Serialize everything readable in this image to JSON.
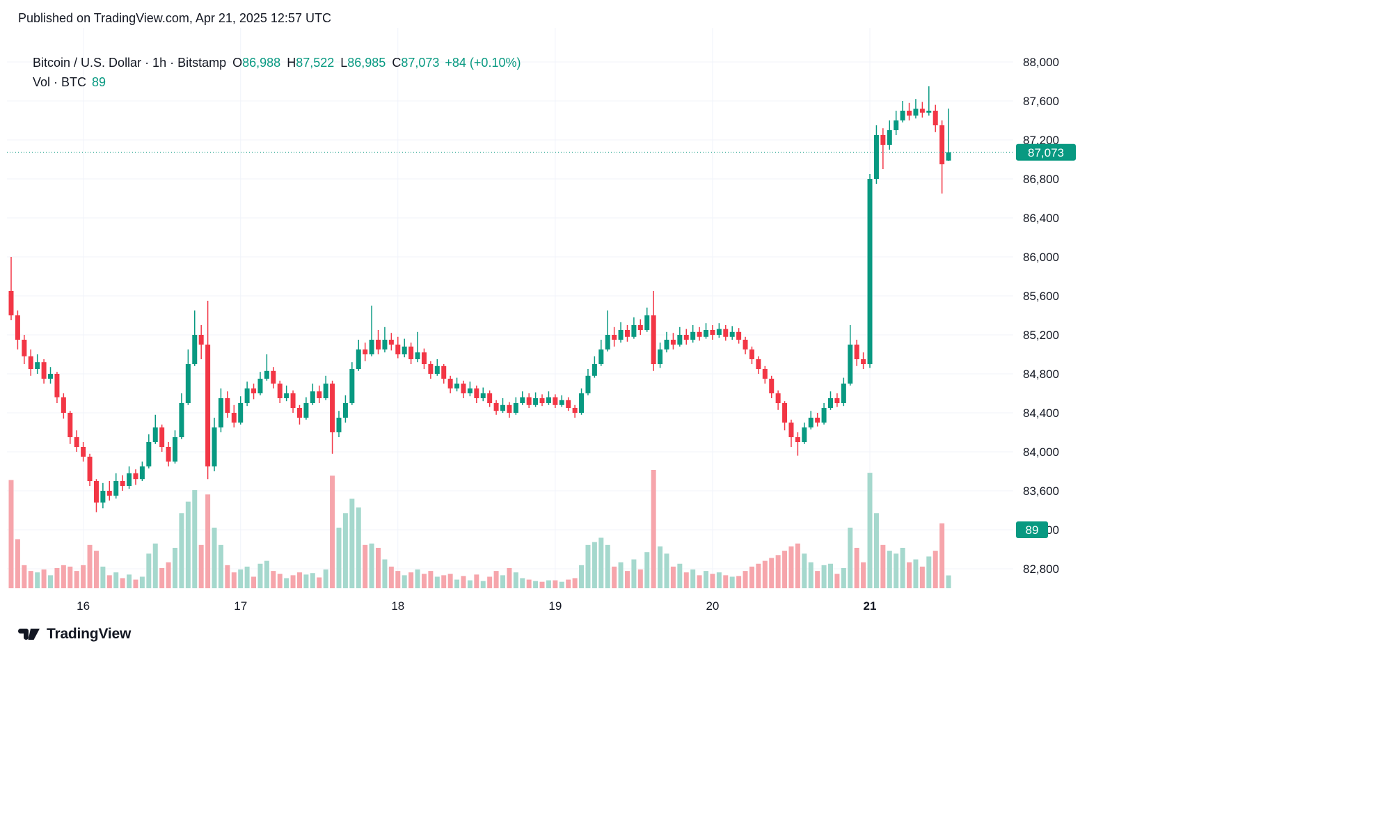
{
  "header": {
    "published": "Published on TradingView.com, Apr 21, 2025 12:57 UTC"
  },
  "legend": {
    "title": "Bitcoin / U.S. Dollar · 1h · Bitstamp",
    "ohlc": [
      {
        "k": "O",
        "v": "86,988"
      },
      {
        "k": "H",
        "v": "87,522"
      },
      {
        "k": "L",
        "v": "86,985"
      },
      {
        "k": "C",
        "v": "87,073"
      }
    ],
    "change": "+84 (+0.10%)",
    "vol_label": "Vol · BTC",
    "vol_value": "89"
  },
  "footer": {
    "brand": "TradingView"
  },
  "colors": {
    "up": "#089981",
    "down": "#F23645",
    "vol_up": "#a5d8cd",
    "vol_down": "#f6a5ab",
    "text": "#131722",
    "grid": "#f0f3fa",
    "badge_text": "#ffffff"
  },
  "chart_data": {
    "type": "candlestick+volume",
    "title": "Bitcoin / U.S. Dollar · 1h · Bitstamp",
    "interval": "1h",
    "exchange": "Bitstamp",
    "last": {
      "open": 86988,
      "high": 87522,
      "low": 86985,
      "close": 87073,
      "change": 84,
      "change_pct": 0.1,
      "volume_btc": 89
    },
    "last_price": 87073,
    "last_price_label": "87,073",
    "last_volume_label": "89",
    "ylim": [
      82550,
      88150
    ],
    "grid": "faint",
    "y_ticks": [
      {
        "price": 88000,
        "label": "88,000"
      },
      {
        "price": 87600,
        "label": "87,600"
      },
      {
        "price": 87200,
        "label": "87,200"
      },
      {
        "price": 86800,
        "label": "86,800"
      },
      {
        "price": 86400,
        "label": "86,400"
      },
      {
        "price": 86000,
        "label": "86,000"
      },
      {
        "price": 85600,
        "label": "85,600"
      },
      {
        "price": 85200,
        "label": "85,200"
      },
      {
        "price": 84800,
        "label": "84,800"
      },
      {
        "price": 84400,
        "label": "84,400"
      },
      {
        "price": 84000,
        "label": "84,000"
      },
      {
        "price": 83600,
        "label": "83,600"
      },
      {
        "price": 83200,
        "label": "83,200"
      },
      {
        "price": 82800,
        "label": "82,800"
      }
    ],
    "x_ticks": [
      {
        "i": 11,
        "label": "16",
        "bold": false
      },
      {
        "i": 35,
        "label": "17",
        "bold": false
      },
      {
        "i": 59,
        "label": "18",
        "bold": false
      },
      {
        "i": 83,
        "label": "19",
        "bold": false
      },
      {
        "i": 107,
        "label": "20",
        "bold": false
      },
      {
        "i": 131,
        "label": "21",
        "bold": true
      }
    ],
    "candles": {
      "columns": [
        "open",
        "high",
        "low",
        "close",
        "volume"
      ],
      "rows": [
        [
          85650,
          86000,
          85350,
          85400,
          750
        ],
        [
          85400,
          85450,
          85050,
          85150,
          340
        ],
        [
          85150,
          85200,
          84900,
          84980,
          160
        ],
        [
          84980,
          85050,
          84780,
          84850,
          120
        ],
        [
          84850,
          85000,
          84800,
          84920,
          110
        ],
        [
          84920,
          84950,
          84700,
          84750,
          130
        ],
        [
          84750,
          84870,
          84700,
          84800,
          90
        ],
        [
          84800,
          84820,
          84500,
          84560,
          140
        ],
        [
          84560,
          84600,
          84340,
          84400,
          160
        ],
        [
          84400,
          84420,
          84080,
          84150,
          150
        ],
        [
          84150,
          84220,
          84000,
          84050,
          120
        ],
        [
          84050,
          84100,
          83900,
          83950,
          160
        ],
        [
          83950,
          83980,
          83650,
          83700,
          300
        ],
        [
          83700,
          83720,
          83380,
          83480,
          260
        ],
        [
          83480,
          83680,
          83420,
          83600,
          150
        ],
        [
          83600,
          83700,
          83500,
          83550,
          90
        ],
        [
          83550,
          83780,
          83520,
          83700,
          110
        ],
        [
          83700,
          83760,
          83600,
          83650,
          70
        ],
        [
          83650,
          83850,
          83620,
          83780,
          95
        ],
        [
          83780,
          83820,
          83660,
          83720,
          60
        ],
        [
          83720,
          83900,
          83700,
          83850,
          80
        ],
        [
          83850,
          84180,
          83830,
          84100,
          240
        ],
        [
          84100,
          84380,
          84080,
          84250,
          310
        ],
        [
          84250,
          84280,
          84000,
          84050,
          140
        ],
        [
          84050,
          84100,
          83850,
          83900,
          180
        ],
        [
          83900,
          84220,
          83880,
          84150,
          280
        ],
        [
          84150,
          84600,
          84130,
          84500,
          520
        ],
        [
          84500,
          85050,
          84480,
          84900,
          600
        ],
        [
          84900,
          85450,
          84880,
          85200,
          680
        ],
        [
          85200,
          85300,
          84950,
          85100,
          300
        ],
        [
          85100,
          85550,
          83720,
          83850,
          650
        ],
        [
          83850,
          84350,
          83800,
          84250,
          420
        ],
        [
          84250,
          84650,
          84200,
          84550,
          300
        ],
        [
          84550,
          84620,
          84350,
          84400,
          160
        ],
        [
          84400,
          84480,
          84250,
          84300,
          110
        ],
        [
          84300,
          84570,
          84280,
          84500,
          130
        ],
        [
          84500,
          84720,
          84470,
          84650,
          150
        ],
        [
          84650,
          84700,
          84540,
          84600,
          80
        ],
        [
          84600,
          84820,
          84580,
          84750,
          170
        ],
        [
          84750,
          85000,
          84730,
          84830,
          190
        ],
        [
          84830,
          84870,
          84650,
          84700,
          120
        ],
        [
          84700,
          84730,
          84500,
          84550,
          100
        ],
        [
          84550,
          84680,
          84520,
          84600,
          70
        ],
        [
          84600,
          84630,
          84400,
          84450,
          90
        ],
        [
          84450,
          84480,
          84280,
          84350,
          110
        ],
        [
          84350,
          84560,
          84330,
          84500,
          95
        ],
        [
          84500,
          84700,
          84480,
          84620,
          105
        ],
        [
          84620,
          84680,
          84500,
          84550,
          75
        ],
        [
          84550,
          84780,
          84530,
          84700,
          130
        ],
        [
          84700,
          84730,
          83980,
          84200,
          780
        ],
        [
          84200,
          84420,
          84150,
          84350,
          420
        ],
        [
          84350,
          84580,
          84300,
          84500,
          520
        ],
        [
          84500,
          84920,
          84480,
          84850,
          620
        ],
        [
          84850,
          85150,
          84830,
          85050,
          560
        ],
        [
          85050,
          85120,
          84930,
          85000,
          300
        ],
        [
          85000,
          85500,
          84980,
          85150,
          310
        ],
        [
          85150,
          85250,
          85000,
          85050,
          280
        ],
        [
          85050,
          85280,
          85020,
          85150,
          200
        ],
        [
          85150,
          85220,
          85040,
          85100,
          150
        ],
        [
          85100,
          85180,
          84960,
          85000,
          120
        ],
        [
          85000,
          85160,
          84970,
          85080,
          90
        ],
        [
          85080,
          85120,
          84900,
          84950,
          110
        ],
        [
          84950,
          85230,
          84920,
          85020,
          130
        ],
        [
          85020,
          85060,
          84850,
          84900,
          100
        ],
        [
          84900,
          84930,
          84750,
          84800,
          120
        ],
        [
          84800,
          84950,
          84780,
          84880,
          80
        ],
        [
          84880,
          84900,
          84700,
          84750,
          90
        ],
        [
          84750,
          84780,
          84600,
          84650,
          100
        ],
        [
          84650,
          84760,
          84620,
          84700,
          60
        ],
        [
          84700,
          84730,
          84550,
          84600,
          85
        ],
        [
          84600,
          84720,
          84570,
          84650,
          55
        ],
        [
          84650,
          84680,
          84500,
          84550,
          95
        ],
        [
          84550,
          84660,
          84520,
          84600,
          50
        ],
        [
          84600,
          84630,
          84460,
          84500,
          80
        ],
        [
          84500,
          84530,
          84380,
          84420,
          120
        ],
        [
          84420,
          84550,
          84400,
          84480,
          90
        ],
        [
          84480,
          84510,
          84350,
          84400,
          140
        ],
        [
          84400,
          84560,
          84380,
          84500,
          110
        ],
        [
          84500,
          84620,
          84480,
          84560,
          70
        ],
        [
          84560,
          84600,
          84450,
          84480,
          60
        ],
        [
          84480,
          84610,
          84460,
          84550,
          50
        ],
        [
          84550,
          84590,
          84470,
          84500,
          45
        ],
        [
          84500,
          84620,
          84480,
          84560,
          55
        ],
        [
          84560,
          84590,
          84450,
          84480,
          55
        ],
        [
          84480,
          84580,
          84460,
          84530,
          45
        ],
        [
          84530,
          84560,
          84420,
          84450,
          60
        ],
        [
          84450,
          84480,
          84350,
          84400,
          70
        ],
        [
          84400,
          84650,
          84380,
          84600,
          160
        ],
        [
          84600,
          84850,
          84580,
          84780,
          300
        ],
        [
          84780,
          84980,
          84760,
          84900,
          320
        ],
        [
          84900,
          85150,
          84880,
          85050,
          350
        ],
        [
          85050,
          85450,
          85030,
          85200,
          300
        ],
        [
          85200,
          85280,
          85080,
          85150,
          150
        ],
        [
          85150,
          85330,
          85120,
          85250,
          180
        ],
        [
          85250,
          85300,
          85130,
          85180,
          120
        ],
        [
          85180,
          85380,
          85160,
          85300,
          200
        ],
        [
          85300,
          85360,
          85200,
          85250,
          130
        ],
        [
          85250,
          85480,
          85230,
          85400,
          250
        ],
        [
          85400,
          85650,
          84830,
          84900,
          820
        ],
        [
          84900,
          85120,
          84860,
          85050,
          290
        ],
        [
          85050,
          85230,
          85020,
          85150,
          240
        ],
        [
          85150,
          85220,
          85050,
          85100,
          150
        ],
        [
          85100,
          85280,
          85080,
          85200,
          170
        ],
        [
          85200,
          85260,
          85100,
          85150,
          110
        ],
        [
          85150,
          85300,
          85120,
          85230,
          130
        ],
        [
          85230,
          85280,
          85140,
          85180,
          90
        ],
        [
          85180,
          85320,
          85160,
          85250,
          120
        ],
        [
          85250,
          85300,
          85150,
          85200,
          100
        ],
        [
          85200,
          85320,
          85170,
          85260,
          110
        ],
        [
          85260,
          85300,
          85140,
          85180,
          90
        ],
        [
          85180,
          85290,
          85150,
          85230,
          80
        ],
        [
          85230,
          85270,
          85110,
          85150,
          85
        ],
        [
          85150,
          85180,
          85000,
          85050,
          120
        ],
        [
          85050,
          85080,
          84900,
          84950,
          150
        ],
        [
          84950,
          84980,
          84800,
          84850,
          170
        ],
        [
          84850,
          84880,
          84700,
          84750,
          190
        ],
        [
          84750,
          84780,
          84550,
          84600,
          210
        ],
        [
          84600,
          84630,
          84430,
          84500,
          230
        ],
        [
          84500,
          84520,
          84220,
          84300,
          260
        ],
        [
          84300,
          84330,
          84050,
          84150,
          290
        ],
        [
          84150,
          84200,
          83960,
          84100,
          310
        ],
        [
          84100,
          84300,
          84080,
          84250,
          240
        ],
        [
          84250,
          84420,
          84230,
          84350,
          180
        ],
        [
          84350,
          84400,
          84260,
          84300,
          120
        ],
        [
          84300,
          84500,
          84280,
          84450,
          160
        ],
        [
          84450,
          84620,
          84430,
          84550,
          170
        ],
        [
          84550,
          84600,
          84460,
          84500,
          100
        ],
        [
          84500,
          84760,
          84470,
          84700,
          140
        ],
        [
          84700,
          85300,
          84680,
          85100,
          420
        ],
        [
          85100,
          85150,
          84880,
          84950,
          280
        ],
        [
          84950,
          85020,
          84850,
          84900,
          180
        ],
        [
          84900,
          86850,
          84860,
          86800,
          800
        ],
        [
          86800,
          87350,
          86750,
          87250,
          520
        ],
        [
          87250,
          87320,
          86900,
          87150,
          300
        ],
        [
          87150,
          87400,
          87100,
          87300,
          260
        ],
        [
          87300,
          87500,
          87250,
          87400,
          240
        ],
        [
          87400,
          87600,
          87380,
          87500,
          280
        ],
        [
          87500,
          87580,
          87400,
          87450,
          180
        ],
        [
          87450,
          87620,
          87420,
          87520,
          200
        ],
        [
          87520,
          87590,
          87430,
          87480,
          150
        ],
        [
          87480,
          87750,
          87450,
          87500,
          220
        ],
        [
          87500,
          87560,
          87280,
          87350,
          260
        ],
        [
          87350,
          87400,
          86650,
          86950,
          450
        ],
        [
          86988,
          87522,
          86985,
          87073,
          89
        ]
      ]
    }
  }
}
